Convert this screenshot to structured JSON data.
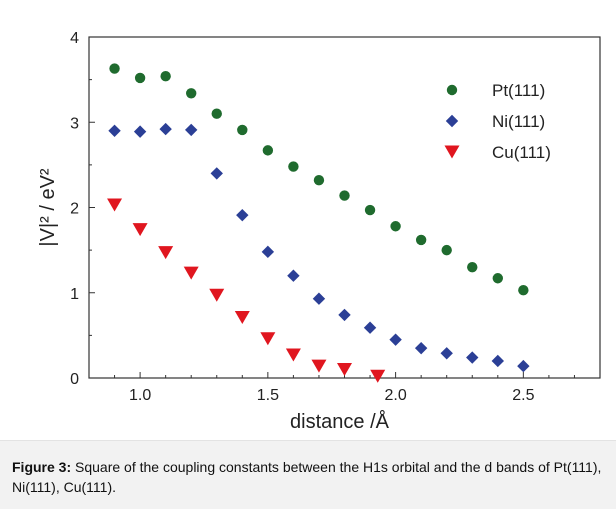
{
  "chart_data": {
    "type": "scatter",
    "xlabel": "distance /Å",
    "ylabel": "|V|² / eV²",
    "xlim": [
      0.8,
      2.8
    ],
    "ylim": [
      0,
      4
    ],
    "xticks": [
      "1.0",
      "1.5",
      "2.0",
      "2.5"
    ],
    "yticks": [
      "0",
      "1",
      "2",
      "3",
      "4"
    ],
    "grid": false,
    "legend_position": "top-right",
    "series": [
      {
        "name": "Pt(111)",
        "marker": "circle",
        "color": "#1f6b2e",
        "x": [
          0.9,
          1.0,
          1.1,
          1.2,
          1.3,
          1.4,
          1.5,
          1.6,
          1.7,
          1.8,
          1.9,
          2.0,
          2.1,
          2.2,
          2.3,
          2.4,
          2.5
        ],
        "y": [
          3.63,
          3.52,
          3.54,
          3.34,
          3.1,
          2.91,
          2.67,
          2.48,
          2.32,
          2.14,
          1.97,
          1.78,
          1.62,
          1.5,
          1.3,
          1.17,
          1.03
        ]
      },
      {
        "name": "Ni(111)",
        "marker": "diamond",
        "color": "#2b3f96",
        "x": [
          0.9,
          1.0,
          1.1,
          1.2,
          1.3,
          1.4,
          1.5,
          1.6,
          1.7,
          1.8,
          1.9,
          2.0,
          2.1,
          2.2,
          2.3,
          2.4,
          2.5
        ],
        "y": [
          2.9,
          2.89,
          2.92,
          2.91,
          2.4,
          1.91,
          1.48,
          1.2,
          0.93,
          0.74,
          0.59,
          0.45,
          0.35,
          0.29,
          0.24,
          0.2,
          0.14
        ]
      },
      {
        "name": "Cu(111)",
        "marker": "triangle-down",
        "color": "#e0161f",
        "x": [
          0.9,
          1.0,
          1.1,
          1.2,
          1.3,
          1.4,
          1.5,
          1.6,
          1.7,
          1.8,
          1.93
        ],
        "y": [
          2.03,
          1.74,
          1.47,
          1.23,
          0.97,
          0.71,
          0.46,
          0.27,
          0.14,
          0.1,
          0.02
        ]
      }
    ]
  },
  "caption": {
    "label": "Figure 3:",
    "text": " Square of the coupling constants between the H1s orbital and the d bands of Pt(111), Ni(111), Cu(111)."
  }
}
